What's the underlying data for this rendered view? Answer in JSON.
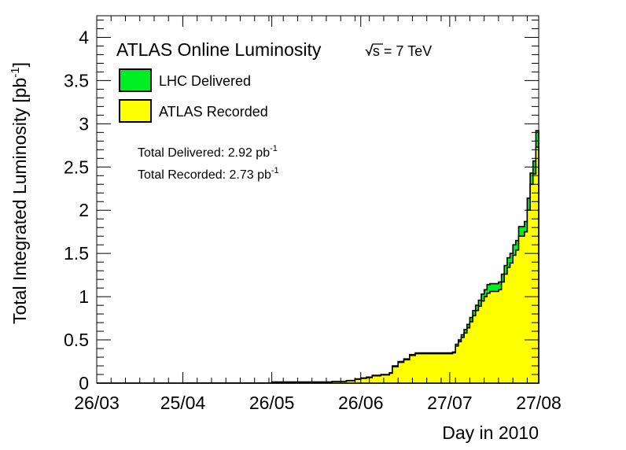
{
  "chart_data": {
    "type": "area",
    "title": "ATLAS Online Luminosity",
    "energy_label": "√s = 7 TeV",
    "ylabel": "Total Integrated Luminosity [pb",
    "ylabel_sup": "-1",
    "ylabel_end": "]",
    "xlabel": "Day in 2010",
    "ylim": [
      0,
      4.25
    ],
    "xlim": [
      "2010-03-26",
      "2010-08-27"
    ],
    "grid": false,
    "legend_position": "top-left",
    "x_tick_labels": [
      "26/03",
      "25/04",
      "26/05",
      "26/06",
      "27/07",
      "27/08"
    ],
    "x_tick_dates": [
      "2010-03-26",
      "2010-04-25",
      "2010-05-26",
      "2010-06-26",
      "2010-07-27",
      "2010-08-27"
    ],
    "y_ticks": [
      0,
      0.5,
      1,
      1.5,
      2,
      2.5,
      3,
      3.5,
      4
    ],
    "y_tick_labels": [
      "0",
      "0.5",
      "1",
      "1.5",
      "2",
      "2.5",
      "3",
      "3.5",
      "4"
    ],
    "series": [
      {
        "name": "LHC Delivered",
        "color": "#00ee22",
        "points": [
          [
            "2010-03-26",
            0
          ],
          [
            "2010-04-25",
            0.002
          ],
          [
            "2010-05-26",
            0.013
          ],
          [
            "2010-06-16",
            0.02
          ],
          [
            "2010-06-21",
            0.03
          ],
          [
            "2010-06-24",
            0.05
          ],
          [
            "2010-06-26",
            0.06
          ],
          [
            "2010-06-28",
            0.07
          ],
          [
            "2010-06-30",
            0.09
          ],
          [
            "2010-07-03",
            0.1
          ],
          [
            "2010-07-06",
            0.12
          ],
          [
            "2010-07-07",
            0.2
          ],
          [
            "2010-07-09",
            0.25
          ],
          [
            "2010-07-11",
            0.28
          ],
          [
            "2010-07-13",
            0.33
          ],
          [
            "2010-07-15",
            0.35
          ],
          [
            "2010-07-28",
            0.36
          ],
          [
            "2010-07-29",
            0.45
          ],
          [
            "2010-07-30",
            0.5
          ],
          [
            "2010-07-31",
            0.56
          ],
          [
            "2010-08-01",
            0.62
          ],
          [
            "2010-08-02",
            0.68
          ],
          [
            "2010-08-03",
            0.76
          ],
          [
            "2010-08-04",
            0.84
          ],
          [
            "2010-08-05",
            0.9
          ],
          [
            "2010-08-06",
            0.96
          ],
          [
            "2010-08-07",
            1.03
          ],
          [
            "2010-08-08",
            1.08
          ],
          [
            "2010-08-09",
            1.14
          ],
          [
            "2010-08-10",
            1.15
          ],
          [
            "2010-08-13",
            1.17
          ],
          [
            "2010-08-14",
            1.26
          ],
          [
            "2010-08-15",
            1.36
          ],
          [
            "2010-08-16",
            1.45
          ],
          [
            "2010-08-17",
            1.5
          ],
          [
            "2010-08-18",
            1.6
          ],
          [
            "2010-08-19",
            1.65
          ],
          [
            "2010-08-20",
            1.81
          ],
          [
            "2010-08-22",
            1.87
          ],
          [
            "2010-08-23",
            2.14
          ],
          [
            "2010-08-24",
            2.43
          ],
          [
            "2010-08-25",
            2.57
          ],
          [
            "2010-08-26",
            2.92
          ],
          [
            "2010-08-27",
            2.92
          ]
        ]
      },
      {
        "name": "ATLAS Recorded",
        "color": "#ffff00",
        "points": [
          [
            "2010-03-26",
            0
          ],
          [
            "2010-04-25",
            0.002
          ],
          [
            "2010-05-26",
            0.012
          ],
          [
            "2010-06-16",
            0.018
          ],
          [
            "2010-06-21",
            0.028
          ],
          [
            "2010-06-24",
            0.045
          ],
          [
            "2010-06-26",
            0.055
          ],
          [
            "2010-06-28",
            0.065
          ],
          [
            "2010-06-30",
            0.085
          ],
          [
            "2010-07-03",
            0.095
          ],
          [
            "2010-07-06",
            0.115
          ],
          [
            "2010-07-07",
            0.19
          ],
          [
            "2010-07-09",
            0.24
          ],
          [
            "2010-07-11",
            0.27
          ],
          [
            "2010-07-13",
            0.32
          ],
          [
            "2010-07-15",
            0.34
          ],
          [
            "2010-07-28",
            0.35
          ],
          [
            "2010-07-29",
            0.43
          ],
          [
            "2010-07-30",
            0.48
          ],
          [
            "2010-07-31",
            0.53
          ],
          [
            "2010-08-01",
            0.58
          ],
          [
            "2010-08-02",
            0.64
          ],
          [
            "2010-08-03",
            0.71
          ],
          [
            "2010-08-04",
            0.78
          ],
          [
            "2010-08-05",
            0.84
          ],
          [
            "2010-08-06",
            0.89
          ],
          [
            "2010-08-07",
            0.95
          ],
          [
            "2010-08-08",
            1.0
          ],
          [
            "2010-08-09",
            1.04
          ],
          [
            "2010-08-10",
            1.06
          ],
          [
            "2010-08-13",
            1.08
          ],
          [
            "2010-08-14",
            1.17
          ],
          [
            "2010-08-15",
            1.26
          ],
          [
            "2010-08-16",
            1.34
          ],
          [
            "2010-08-17",
            1.39
          ],
          [
            "2010-08-18",
            1.48
          ],
          [
            "2010-08-19",
            1.54
          ],
          [
            "2010-08-20",
            1.7
          ],
          [
            "2010-08-22",
            1.75
          ],
          [
            "2010-08-23",
            2.0
          ],
          [
            "2010-08-24",
            2.3
          ],
          [
            "2010-08-25",
            2.42
          ],
          [
            "2010-08-26",
            2.73
          ],
          [
            "2010-08-27",
            2.73
          ]
        ]
      }
    ],
    "totals": [
      {
        "label": "Total Delivered: 2.92 pb",
        "sup": "-1"
      },
      {
        "label": "Total Recorded: 2.73 pb",
        "sup": "-1"
      }
    ]
  }
}
